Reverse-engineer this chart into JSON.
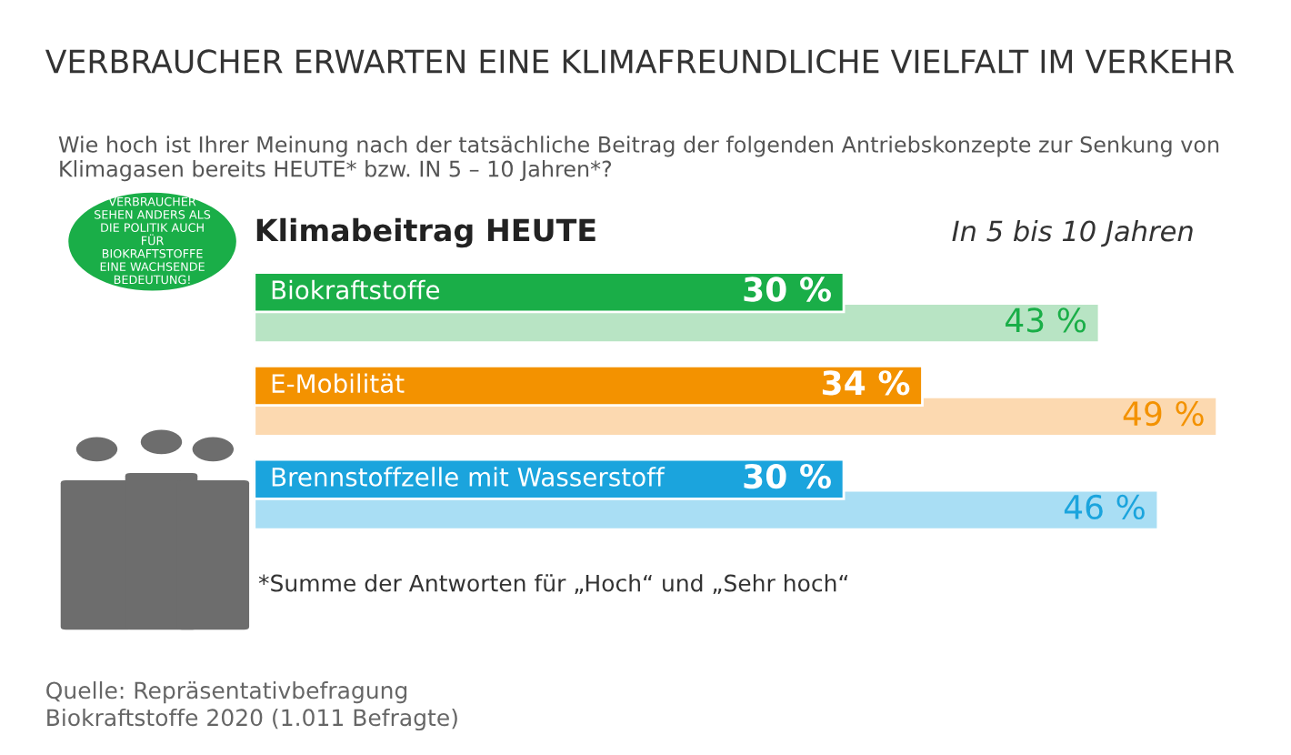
{
  "chart_data": {
    "type": "bar",
    "orientation": "horizontal",
    "title": "VERBRAUCHER ERWARTEN EINE KLIMAFREUNDLICHE VIELFALT IM VERKEHR",
    "subtitle": "Wie hoch ist Ihrer Meinung nach der tatsächliche Beitrag der folgenden Antriebskonzepte zur Senkung von Klimagasen bereits HEUTE* bzw. IN 5 – 10 Jahren*?",
    "categories": [
      "Biokraftstoffe",
      "E-Mobilität",
      "Brennstoffzelle mit Wasserstoff"
    ],
    "tick_labels": false,
    "series": [
      {
        "name": "Klimabeitrag HEUTE",
        "values": [
          30,
          34,
          30
        ],
        "value_labels": [
          "30 %",
          "34 %",
          "30 %"
        ],
        "colors": [
          "#1aae48",
          "#f39200",
          "#1ba4dd"
        ]
      },
      {
        "name": "In 5 bis 10 Jahren",
        "values": [
          43,
          49,
          46
        ],
        "value_labels": [
          "43 %",
          "49 %",
          "46 %"
        ],
        "colors": [
          "#b8e4c4",
          "#fcd9b0",
          "#a9def4"
        ]
      }
    ],
    "annotations": [
      "VERBRAUCHER SEHEN ANDERS ALS DIE POLITIK AUCH FÜR BIOKRAFTSTOFFE EINE WACHSENDE BEDEUTUNG!",
      "*Summe der Antworten für „Hoch“ und „Sehr hoch“",
      "Quelle: Repräsentativbefragung\nBiokraftstoffe 2020 (1.011 Befragte)"
    ]
  }
}
